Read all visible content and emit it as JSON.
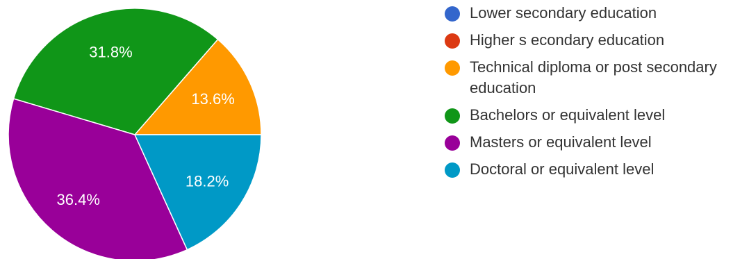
{
  "chart_data": {
    "type": "pie",
    "title": "",
    "legend_placement": "right",
    "slices": [
      {
        "label": "Lower secondary education",
        "value": 0,
        "color": "#3366cc",
        "display_label": ""
      },
      {
        "label": "Higher s econdary education",
        "value": 0,
        "color": "#dc3912",
        "display_label": ""
      },
      {
        "label": "Technical diploma or post secondary education",
        "value": 13.6,
        "color": "#ff9900",
        "display_label": "13.6%"
      },
      {
        "label": "Bachelors or equivalent level",
        "value": 31.8,
        "color": "#109618",
        "display_label": "31.8%"
      },
      {
        "label": "Masters or equivalent level",
        "value": 36.4,
        "color": "#990099",
        "display_label": "36.4%"
      },
      {
        "label": "Doctoral or equivalent level",
        "value": 18.2,
        "color": "#0099c6",
        "display_label": "18.2%"
      }
    ]
  }
}
